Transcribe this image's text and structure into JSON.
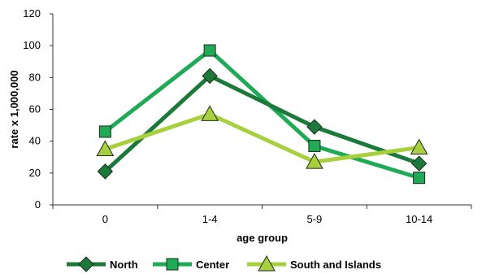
{
  "chart_data": {
    "type": "line",
    "categories": [
      "0",
      "1-4",
      "5-9",
      "10-14"
    ],
    "series": [
      {
        "name": "North",
        "values": [
          21,
          81,
          49,
          26
        ],
        "color": "#1b7a3a",
        "marker": "diamond"
      },
      {
        "name": "Center",
        "values": [
          46,
          97,
          37,
          17
        ],
        "color": "#1faa55",
        "marker": "square"
      },
      {
        "name": "South and Islands",
        "values": [
          35,
          57,
          27,
          36
        ],
        "color": "#a8cf3d",
        "marker": "triangle"
      }
    ],
    "xlabel": "age group",
    "ylabel": "rate x 1,000,000",
    "ylim": [
      0,
      120
    ],
    "yticks": [
      0,
      20,
      40,
      60,
      80,
      100,
      120
    ],
    "grid": false,
    "legend_position": "bottom"
  }
}
